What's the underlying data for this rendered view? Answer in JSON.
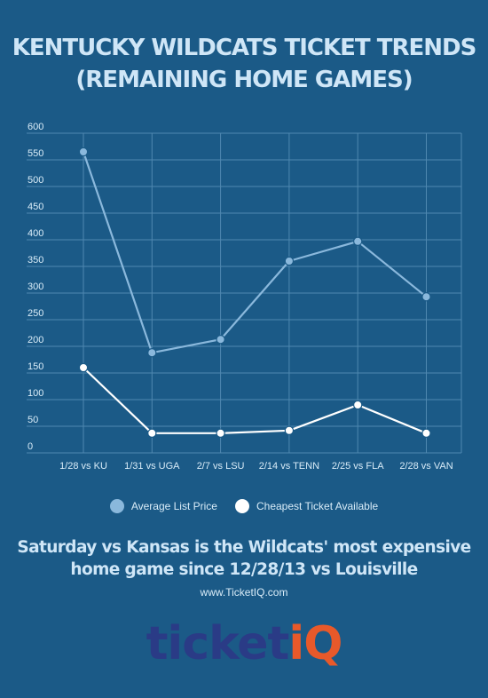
{
  "title": {
    "line1": "KENTUCKY WILDCATS TICKET TRENDS",
    "line2": "(REMAINING HOME GAMES)"
  },
  "chart_data": {
    "type": "line",
    "categories": [
      "1/28 vs KU",
      "1/31 vs UGA",
      "2/7 vs LSU",
      "2/14 vs TENN",
      "2/25 vs FLA",
      "2/28 vs VAN"
    ],
    "series": [
      {
        "name": "Average List Price",
        "values": [
          565,
          188,
          213,
          360,
          397,
          293
        ],
        "color": "#8ab8dc"
      },
      {
        "name": "Cheapest Ticket Available",
        "values": [
          160,
          37,
          37,
          42,
          90,
          37
        ],
        "color": "#ffffff"
      }
    ],
    "yticks": [
      0,
      50,
      100,
      150,
      200,
      250,
      300,
      350,
      400,
      450,
      500,
      550,
      600
    ],
    "ylim": [
      0,
      600
    ],
    "grid": true,
    "legend": "bottom"
  },
  "colors": {
    "background": "#1b5a87",
    "gridline": "#4f88b0"
  },
  "headline": {
    "line1": "Saturday vs Kansas is the Wildcats' most expensive",
    "line2": "home game since 12/28/13 vs Louisville"
  },
  "site": "www.TicketIQ.com",
  "logo": {
    "word": "ticket",
    "accent": "iQ"
  }
}
